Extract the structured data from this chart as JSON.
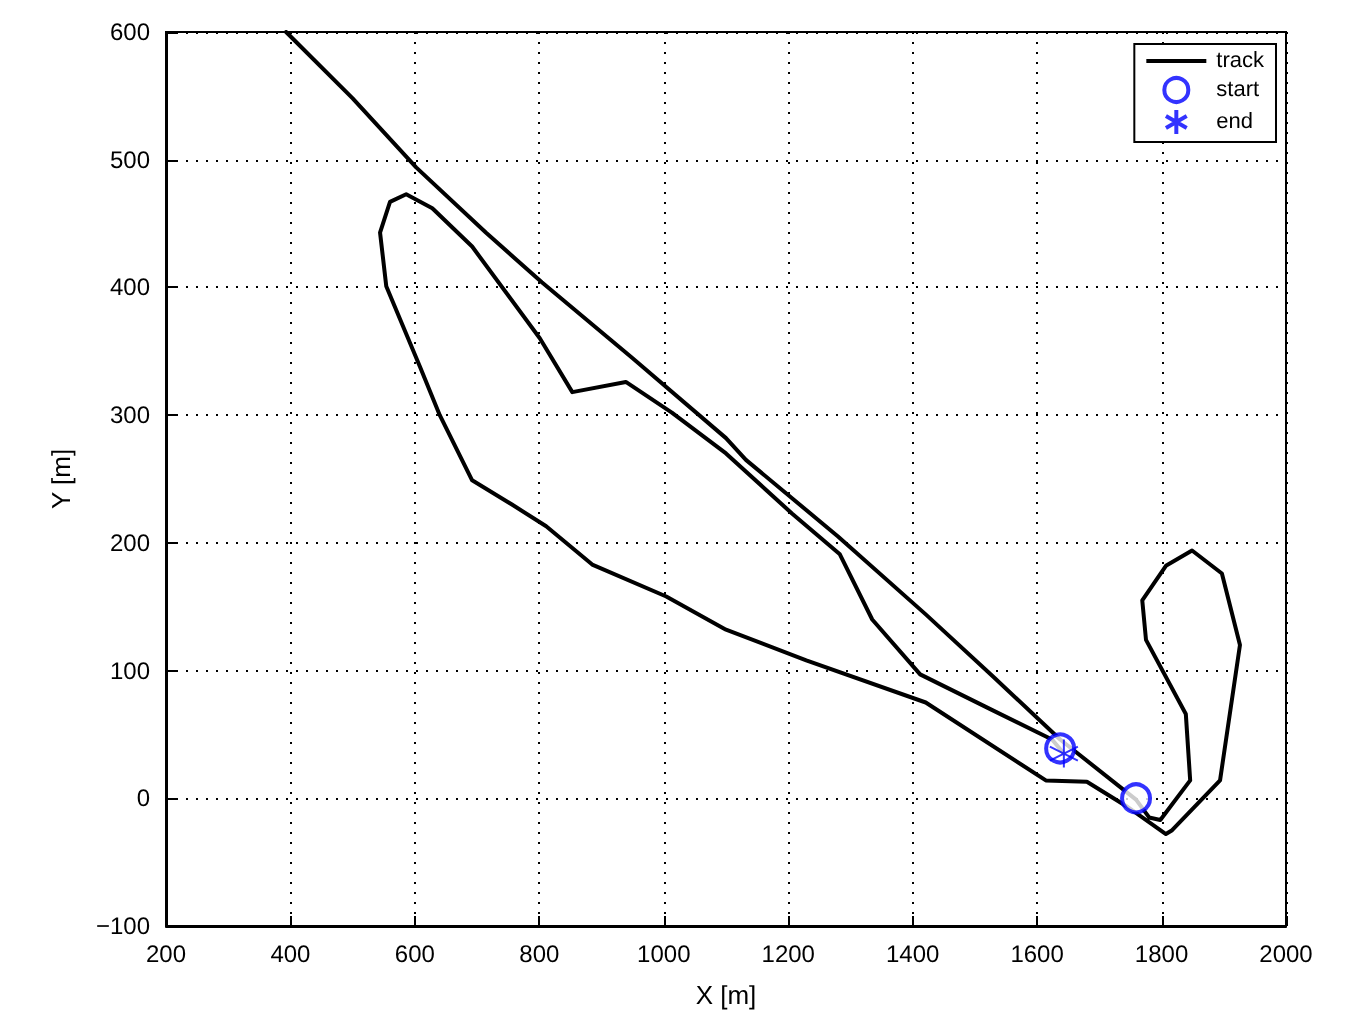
{
  "chart_data": {
    "type": "line",
    "xlabel": "X [m]",
    "ylabel": "Y [m]",
    "xlim": [
      200,
      2000
    ],
    "ylim": [
      -100,
      600
    ],
    "xticks": [
      200,
      400,
      600,
      800,
      1000,
      1200,
      1400,
      1600,
      1800,
      2000
    ],
    "yticks": [
      -100,
      0,
      100,
      200,
      300,
      400,
      500,
      600
    ],
    "grid": true,
    "legend": "top right",
    "series": [
      {
        "name": "track",
        "color": "#000000",
        "marker": "none",
        "line_style": "solid",
        "x": [
          393,
          500,
          602,
          714,
          804,
          949,
          1100,
          1132,
          1280,
          1421,
          1530,
          1637,
          1759,
          1780,
          1798,
          1846,
          1839,
          1775,
          1769,
          1807,
          1849,
          1897,
          1926,
          1894,
          1817,
          1807,
          1743,
          1680,
          1614,
          1421,
          1229,
          1100,
          1004,
          885,
          811,
          756,
          692,
          640,
          608,
          554,
          544,
          560,
          586,
          628,
          692,
          801,
          853,
          939,
          1013,
          1100,
          1206,
          1283,
          1335,
          1412,
          1528,
          1624,
          1643
        ],
        "values": [
          600,
          548,
          494,
          443,
          404,
          345,
          282,
          265,
          205,
          144,
          95,
          46,
          -1,
          -15,
          -17,
          14,
          66,
          124,
          155,
          182,
          194,
          176,
          120,
          14,
          -25,
          -28,
          -6,
          13,
          14,
          75,
          108,
          132,
          158,
          183,
          213,
          230,
          249,
          300,
          338,
          401,
          443,
          467,
          473,
          462,
          432,
          360,
          318,
          326,
          302,
          270,
          223,
          191,
          140,
          97,
          69,
          46,
          35
        ]
      },
      {
        "name": "start",
        "type": "scatter",
        "color": "#0000ff",
        "marker": "circle",
        "x": [
          1759,
          1637
        ],
        "values": [
          0,
          39
        ]
      },
      {
        "name": "end",
        "type": "scatter",
        "color": "#0000ff",
        "marker": "cross",
        "x": [
          1643
        ],
        "values": [
          35
        ]
      }
    ]
  }
}
